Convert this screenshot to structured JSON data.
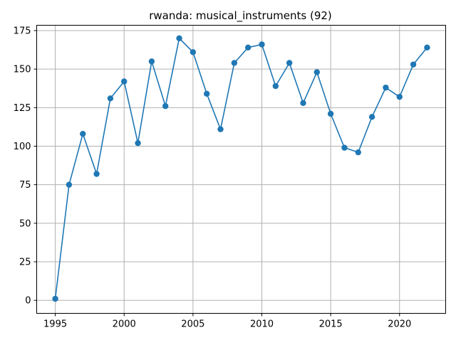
{
  "chart_data": {
    "type": "line",
    "title": "rwanda: musical_instruments (92)",
    "xlabel": "",
    "ylabel": "",
    "xlim": [
      1993.65,
      2023.35
    ],
    "ylim": [
      -8.45,
      178.45
    ],
    "xticks": [
      1995,
      2000,
      2005,
      2010,
      2015,
      2020
    ],
    "yticks": [
      0,
      25,
      50,
      75,
      100,
      125,
      150,
      175
    ],
    "xtick_labels": [
      "1995",
      "2000",
      "2005",
      "2010",
      "2015",
      "2020"
    ],
    "ytick_labels": [
      "0",
      "25",
      "50",
      "75",
      "100",
      "125",
      "150",
      "175"
    ],
    "grid": true,
    "marker": "circle",
    "color": "#1f77b4",
    "x": [
      1995,
      1996,
      1997,
      1998,
      1999,
      2000,
      2001,
      2002,
      2003,
      2004,
      2005,
      2006,
      2007,
      2008,
      2009,
      2010,
      2011,
      2012,
      2013,
      2014,
      2015,
      2016,
      2017,
      2018,
      2019,
      2020,
      2021,
      2022
    ],
    "y": [
      1,
      75,
      108,
      82,
      131,
      142,
      102,
      155,
      126,
      170,
      161,
      134,
      111,
      154,
      164,
      166,
      139,
      154,
      128,
      148,
      121,
      99,
      96,
      119,
      138,
      132,
      153,
      164
    ]
  }
}
